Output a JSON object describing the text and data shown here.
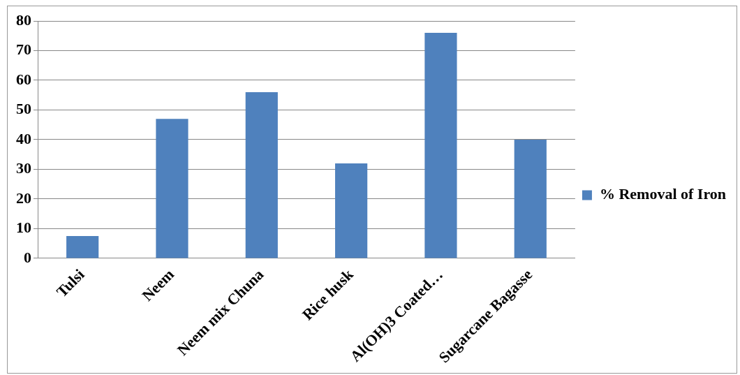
{
  "chart_data": {
    "type": "bar",
    "categories": [
      "Tulsi",
      "Neem",
      "Neem mix Chuna",
      "Rice husk",
      "Al(OH)3 Coated…",
      "Sugarcane Bagasse"
    ],
    "series": [
      {
        "name": "% Removal of Iron",
        "color": "#4f81bd",
        "values": [
          7.5,
          47,
          56,
          32,
          76,
          40
        ]
      }
    ],
    "ylim": [
      0,
      80
    ],
    "yticks": [
      0,
      10,
      20,
      30,
      40,
      50,
      60,
      70,
      80
    ],
    "grid": "y",
    "legend": "right"
  }
}
